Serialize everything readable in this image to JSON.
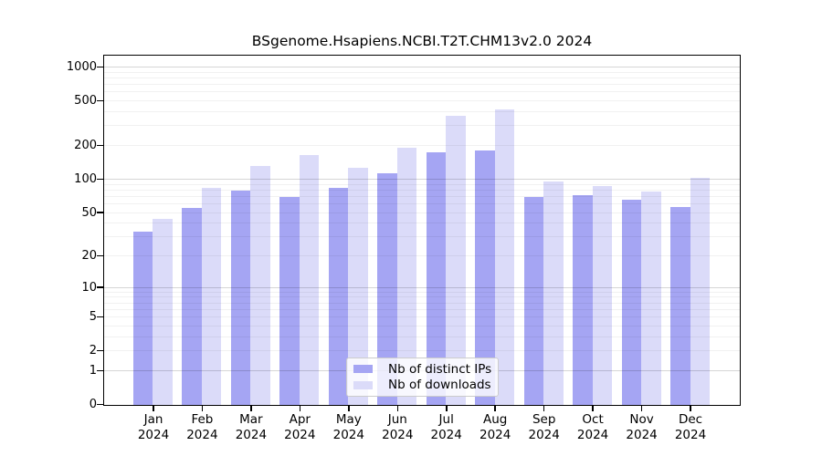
{
  "chart_data": {
    "type": "bar",
    "title": "BSgenome.Hsapiens.NCBI.T2T.CHM13v2.0 2024",
    "scale": "log1p",
    "grid": true,
    "categories": [
      "Jan",
      "Feb",
      "Mar",
      "Apr",
      "May",
      "Jun",
      "Jul",
      "Aug",
      "Sep",
      "Oct",
      "Nov",
      "Dec"
    ],
    "year_label": "2024",
    "series": [
      {
        "name": "Nb of distinct IPs",
        "color": "#a5a5f3",
        "values": [
          34,
          55,
          80,
          70,
          85,
          115,
          177,
          183,
          70,
          72,
          66,
          57
        ]
      },
      {
        "name": "Nb of downloads",
        "color": "#dbdbf9",
        "values": [
          44,
          85,
          133,
          165,
          127,
          193,
          375,
          420,
          96,
          88,
          78,
          104
        ]
      }
    ],
    "y_ticks": [
      1000,
      500,
      200,
      100,
      50,
      20,
      10,
      5,
      2,
      1,
      0
    ],
    "ylim": [
      0,
      1270
    ],
    "legend_position": "lower center",
    "gridline_minor_values": [
      2,
      3,
      4,
      5,
      6,
      7,
      8,
      9,
      20,
      30,
      40,
      50,
      60,
      70,
      80,
      90,
      200,
      300,
      400,
      500,
      600,
      700,
      800,
      900
    ],
    "gridline_major_values": [
      1,
      10,
      100,
      1000
    ]
  }
}
